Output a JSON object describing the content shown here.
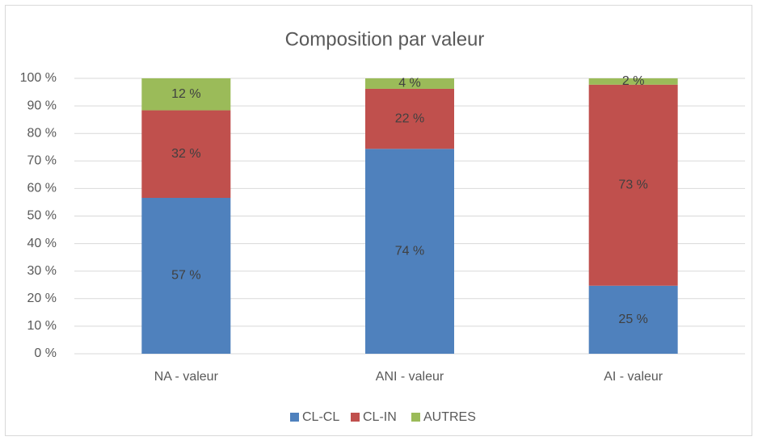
{
  "chart_data": {
    "type": "stacked_bar",
    "title": "Composition par valeur",
    "categories": [
      "NA - valeur",
      "ANI - valeur",
      "AI - valeur"
    ],
    "series": [
      {
        "name": "CL-CL",
        "color": "#4f81bd",
        "values": [
          56.6,
          74.4,
          24.7
        ],
        "value_labels": [
          "57 %",
          "74 %",
          "25 %"
        ]
      },
      {
        "name": "CL-IN",
        "color": "#c0504d",
        "values": [
          31.8,
          21.8,
          73
        ],
        "value_labels": [
          "32 %",
          "22 %",
          "73 %"
        ]
      },
      {
        "name": "AUTRES",
        "color": "#9bbb59",
        "values": [
          11.6,
          3.8,
          2.3
        ],
        "value_labels": [
          "12 %",
          "4 %",
          "2 %"
        ]
      }
    ],
    "ylim": [
      0,
      100
    ],
    "yticks": [
      {
        "value": 0,
        "label": "0 %"
      },
      {
        "value": 10,
        "label": "10 %"
      },
      {
        "value": 20,
        "label": "20 %"
      },
      {
        "value": 30,
        "label": "30 %"
      },
      {
        "value": 40,
        "label": "40 %"
      },
      {
        "value": 50,
        "label": "50 %"
      },
      {
        "value": 60,
        "label": "60 %"
      },
      {
        "value": 70,
        "label": "70 %"
      },
      {
        "value": 80,
        "label": "80 %"
      },
      {
        "value": 90,
        "label": "90 %"
      },
      {
        "value": 100,
        "label": "100 %"
      }
    ],
    "grid": true,
    "legend": "bottom"
  }
}
